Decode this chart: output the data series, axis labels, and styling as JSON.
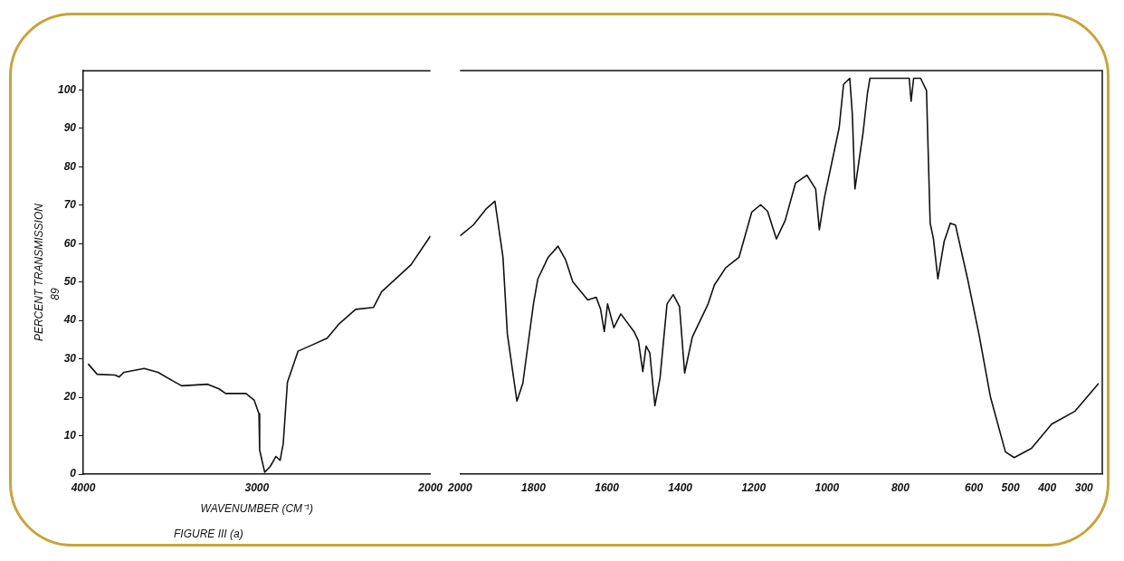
{
  "chart_data": [
    {
      "type": "line",
      "xlabel": "WAVENUMBER (CM⁻¹)",
      "ylabel": "PERCENT TRANSMISSION",
      "annotations": [
        "FIGURE III (a)",
        "89"
      ],
      "xlim": [
        4000,
        2000
      ],
      "xticks": [
        4000,
        3000,
        2000
      ],
      "ylim": [
        0,
        105
      ],
      "yticks": [
        0,
        10,
        20,
        30,
        40,
        50,
        60,
        70,
        80,
        90,
        100
      ],
      "grid": false,
      "legend": false,
      "marker": "none",
      "line_style": "solid",
      "series": [
        {
          "color": "#111111",
          "x": [
            3972,
            3920,
            3817,
            3794,
            3766,
            3649,
            3569,
            3485,
            3433,
            3283,
            3218,
            3180,
            3063,
            3016,
            2988,
            2984,
            2955,
            2923,
            2890,
            2866,
            2848,
            2824,
            2763,
            2698,
            2595,
            2529,
            2431,
            2328,
            2281,
            2112,
            2000
          ],
          "values": [
            28.7,
            26,
            25.8,
            25.3,
            26.5,
            27.5,
            26.5,
            24.3,
            23,
            23.4,
            22.2,
            21,
            21,
            19.3,
            15.7,
            6.3,
            0.5,
            2,
            4.6,
            3.6,
            8,
            23.9,
            32,
            33.3,
            35.4,
            39,
            42.9,
            43.4,
            47.5,
            54.5,
            62
          ]
        }
      ]
    },
    {
      "type": "line",
      "tick_labels": "x",
      "xlim": [
        2000,
        250
      ],
      "xticks": [
        2000,
        1800,
        1600,
        1400,
        1200,
        1000,
        800,
        600,
        500,
        400,
        300
      ],
      "ylim": [
        0,
        105
      ],
      "yticks": [
        0,
        10,
        20,
        30,
        40,
        50,
        60,
        70,
        80,
        90,
        100
      ],
      "grid": false,
      "legend": false,
      "marker": "none",
      "line_style": "solid",
      "series": [
        {
          "color": "#111111",
          "x": [
            2000,
            1964,
            1929,
            1905,
            1883,
            1871,
            1845,
            1829,
            1800,
            1788,
            1760,
            1733,
            1712,
            1693,
            1652,
            1629,
            1617,
            1607,
            1598,
            1581,
            1562,
            1526,
            1514,
            1502,
            1493,
            1483,
            1469,
            1455,
            1436,
            1419,
            1402,
            1388,
            1367,
            1324,
            1307,
            1276,
            1240,
            1205,
            1181,
            1162,
            1138,
            1114,
            1086,
            1055,
            1031,
            1021,
            1007,
            967,
            955,
            938,
            931,
            924,
            902,
            890,
            883,
            776,
            771,
            764,
            745,
            729,
            719,
            710,
            698,
            681,
            664,
            650,
            617,
            586,
            555,
            514,
            490,
            443,
            388,
            324,
            260
          ],
          "values": [
            62,
            64.8,
            69,
            71,
            56.4,
            36.4,
            19,
            23.6,
            44.3,
            50.8,
            56.4,
            59.3,
            55.7,
            50.1,
            45.3,
            46,
            42.9,
            37.1,
            44.3,
            38.1,
            41.7,
            37.1,
            34.7,
            26.7,
            33.3,
            31.6,
            17.8,
            25.1,
            44.3,
            46.7,
            43.6,
            26.3,
            35.7,
            44.3,
            49.2,
            53.7,
            56.4,
            68.2,
            70.1,
            68.4,
            61.2,
            66,
            75.7,
            77.8,
            74.2,
            63.6,
            72,
            90.1,
            101.4,
            103,
            93.5,
            74.2,
            88.7,
            99,
            103,
            103,
            97,
            103,
            103,
            99.8,
            65.3,
            61.2,
            50.8,
            60.5,
            65.3,
            64.8,
            50.8,
            36.4,
            20.2,
            5.8,
            4.3,
            6.7,
            13,
            16.4,
            23.6
          ]
        }
      ]
    }
  ]
}
